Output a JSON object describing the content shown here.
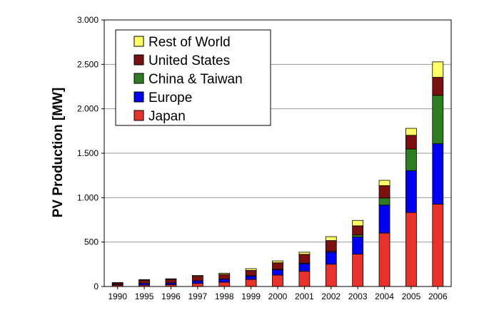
{
  "chart_data": {
    "type": "bar",
    "stacked": true,
    "title": "",
    "xlabel": "",
    "ylabel": "PV Production [MW]",
    "ylim": [
      0,
      3000
    ],
    "ytick_values": [
      0,
      500,
      1000,
      1500,
      2000,
      2500,
      3000
    ],
    "ytick_labels": [
      "0",
      "500",
      "1.000",
      "1.500",
      "2.000",
      "2.500",
      "3.000"
    ],
    "grid": true,
    "legend_position": "top-left",
    "categories": [
      "1990",
      "1995",
      "1996",
      "1997",
      "1998",
      "1999",
      "2000",
      "2001",
      "2002",
      "2003",
      "2004",
      "2005",
      "2006"
    ],
    "series": [
      {
        "name": "Japan",
        "color": "#e8322b",
        "values": [
          15,
          16,
          21,
          35,
          49,
          80,
          129,
          171,
          251,
          364,
          602,
          833,
          927
        ]
      },
      {
        "name": "Europe",
        "color": "#0000f0",
        "values": [
          8,
          20,
          19,
          30,
          34,
          40,
          60,
          86,
          135,
          193,
          314,
          470,
          680
        ]
      },
      {
        "name": "China & Taiwan",
        "color": "#2e7d22",
        "values": [
          0,
          0,
          0,
          0,
          0,
          1,
          3,
          5,
          10,
          23,
          80,
          245,
          545
        ]
      },
      {
        "name": "United States",
        "color": "#7a1010",
        "values": [
          15,
          35,
          40,
          51,
          54,
          60,
          75,
          100,
          121,
          103,
          139,
          154,
          202
        ]
      },
      {
        "name": "Rest of World",
        "color": "#ffff66",
        "values": [
          7,
          7,
          7,
          9,
          13,
          20,
          21,
          24,
          44,
          61,
          60,
          78,
          174
        ]
      }
    ],
    "legend_order": [
      "Rest of World",
      "United States",
      "China & Taiwan",
      "Europe",
      "Japan"
    ]
  }
}
